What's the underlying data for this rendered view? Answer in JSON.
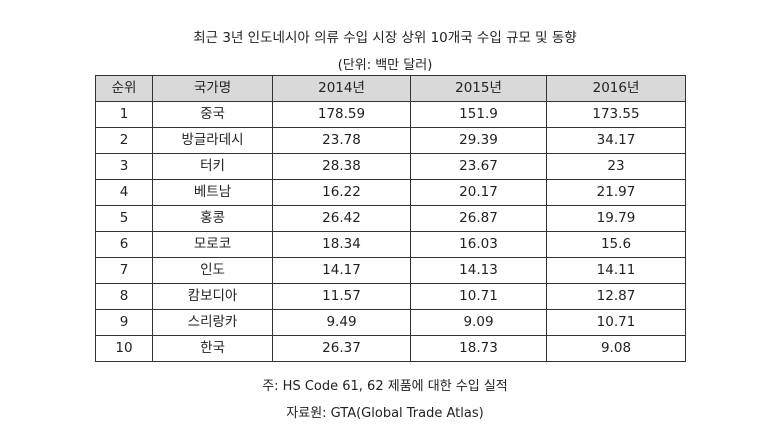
{
  "title": "최근 3년 인도네시아 의류 수입 시장 상위 10개국 수입 규모 및 동향",
  "unit": "(단위: 백만 달러)",
  "table": {
    "headers": [
      "순위",
      "국가명",
      "2014년",
      "2015년",
      "2016년"
    ],
    "rows": [
      [
        "1",
        "중국",
        "178.59",
        "151.9",
        "173.55"
      ],
      [
        "2",
        "방글라데시",
        "23.78",
        "29.39",
        "34.17"
      ],
      [
        "3",
        "터키",
        "28.38",
        "23.67",
        "23"
      ],
      [
        "4",
        "베트남",
        "16.22",
        "20.17",
        "21.97"
      ],
      [
        "5",
        "홍콩",
        "26.42",
        "26.87",
        "19.79"
      ],
      [
        "6",
        "모로코",
        "18.34",
        "16.03",
        "15.6"
      ],
      [
        "7",
        "인도",
        "14.17",
        "14.13",
        "14.11"
      ],
      [
        "8",
        "캄보디아",
        "11.57",
        "10.71",
        "12.87"
      ],
      [
        "9",
        "스리랑카",
        "9.49",
        "9.09",
        "10.71"
      ],
      [
        "10",
        "한국",
        "26.37",
        "18.73",
        "9.08"
      ]
    ]
  },
  "notes": {
    "note": "주: HS Code 61, 62 제품에 대한 수입 실적",
    "source": "자료원: GTA(Global Trade Atlas)"
  },
  "colors": {
    "header_bg": "#d9d9d9",
    "border": "#333333",
    "text": "#222222"
  }
}
